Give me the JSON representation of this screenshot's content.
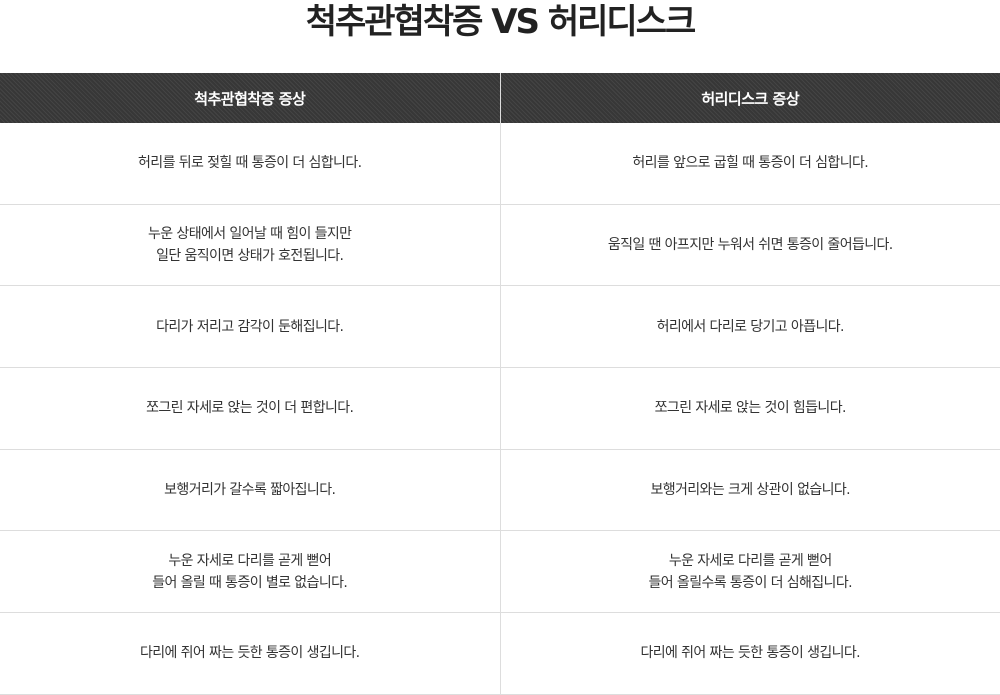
{
  "title": "척추관협착증 VS 허리디스크",
  "headers": [
    "척추관협착증 증상",
    "허리디스크 증상"
  ],
  "rows": [
    {
      "left": [
        "허리를 뒤로 젖힐 때 통증이 더 심합니다."
      ],
      "right": [
        "허리를 앞으로 굽힐 때 통증이 더 심합니다."
      ]
    },
    {
      "left": [
        "누운 상태에서 일어날 때 힘이 들지만",
        "일단 움직이면 상태가 호전됩니다."
      ],
      "right": [
        "움직일 땐 아프지만 누워서 쉬면 통증이 줄어듭니다."
      ]
    },
    {
      "left": [
        "다리가 저리고 감각이 둔해집니다."
      ],
      "right": [
        "허리에서 다리로 당기고 아픕니다."
      ]
    },
    {
      "left": [
        "쪼그린 자세로 앉는 것이 더 편합니다."
      ],
      "right": [
        "쪼그린 자세로 앉는 것이 힘듭니다."
      ]
    },
    {
      "left": [
        "보행거리가 갈수록 짧아집니다."
      ],
      "right": [
        "보행거리와는 크게 상관이 없습니다."
      ]
    },
    {
      "left": [
        "누운 자세로 다리를 곧게 뻗어",
        "들어 올릴 때 통증이 별로 없습니다."
      ],
      "right": [
        "누운 자세로 다리를 곧게 뻗어",
        "들어 올릴수록 통증이 더 심해집니다."
      ]
    },
    {
      "left": [
        "다리에 쥐어 짜는 듯한 통증이 생깁니다."
      ],
      "right": [
        "다리에 쥐어 짜는 듯한 통증이 생깁니다."
      ]
    }
  ]
}
